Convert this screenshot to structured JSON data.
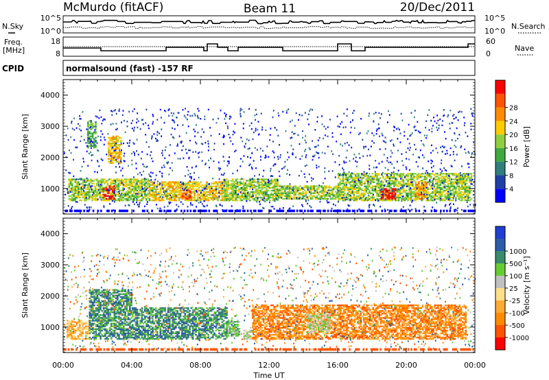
{
  "header": {
    "station": "McMurdo (fitACF)",
    "beam": "Beam 11",
    "date": "20/Dec/2011"
  },
  "noise_panel": {
    "left_label": "N.Sky",
    "right_label": "N.Search",
    "left_ticks": [
      "10^5",
      "10^0"
    ],
    "right_ticks": [
      "10^5",
      "10^0"
    ]
  },
  "freq_panel": {
    "left_label_1": "Freq.",
    "left_label_2": "[MHz]",
    "right_label": "Nave",
    "left_ticks": [
      "18",
      "8"
    ],
    "right_ticks": [
      "60",
      "0"
    ]
  },
  "cpid": {
    "label": "CPID",
    "mode": "normalsound (fast) -157 RF"
  },
  "colors": {
    "power": [
      "#0000ff",
      "#1f3fa6",
      "#2f7f7f",
      "#3fa93f",
      "#8fcf3f",
      "#ffcc00",
      "#ff8c00",
      "#ff5500",
      "#ff0000"
    ],
    "velocity": [
      "#ff0000",
      "#ff5500",
      "#ff8c00",
      "#ffaa33",
      "#ffe08a",
      "#c0c0c0",
      "#66cc33",
      "#3a8a6e",
      "#2c5ca8",
      "#1f3fd0"
    ]
  },
  "chart_data": [
    {
      "type": "heatmap",
      "name": "power",
      "ylabel": "Slant Range [km]",
      "y_ticks": [
        "1000",
        "2000",
        "3000",
        "4000"
      ],
      "ylim": [
        180,
        4500
      ],
      "colorbar_label": "Power [dB]",
      "colorbar_ticks": [
        "4",
        "8",
        "12",
        "16",
        "20",
        "24",
        "28"
      ],
      "colorbar_range": [
        0,
        32
      ],
      "bands": [
        {
          "t0": 0.3,
          "t1": 5.0,
          "r0": 600,
          "r1": 1300,
          "level": 4
        },
        {
          "t0": 2.3,
          "t1": 3.0,
          "r0": 650,
          "r1": 1100,
          "level": 8
        },
        {
          "t0": 2.6,
          "t1": 3.4,
          "r0": 1800,
          "r1": 2700,
          "level": 5
        },
        {
          "t0": 1.4,
          "t1": 1.9,
          "r0": 2300,
          "r1": 3200,
          "level": 3
        },
        {
          "t0": 5.0,
          "t1": 9.5,
          "r0": 600,
          "r1": 1200,
          "level": 5
        },
        {
          "t0": 6.9,
          "t1": 7.4,
          "r0": 650,
          "r1": 950,
          "level": 7
        },
        {
          "t0": 9.3,
          "t1": 12.5,
          "r0": 600,
          "r1": 1300,
          "level": 4
        },
        {
          "t0": 12.5,
          "t1": 16.0,
          "r0": 650,
          "r1": 1100,
          "level": 4
        },
        {
          "t0": 16.0,
          "t1": 23.8,
          "r0": 600,
          "r1": 1500,
          "level": 4
        },
        {
          "t0": 18.5,
          "t1": 19.4,
          "r0": 650,
          "r1": 1000,
          "level": 8
        },
        {
          "t0": 20.5,
          "t1": 21.2,
          "r0": 650,
          "r1": 1200,
          "level": 6
        }
      ]
    },
    {
      "type": "heatmap",
      "name": "velocity",
      "ylabel": "Slant Range [km]",
      "xlabel": "Time UT",
      "x_ticks": [
        "00:00",
        "04:00",
        "08:00",
        "12:00",
        "16:00",
        "20:00",
        "00:00"
      ],
      "xlim": [
        0,
        24
      ],
      "y_ticks": [
        "1000",
        "2000",
        "3000",
        "4000"
      ],
      "ylim": [
        180,
        4500
      ],
      "colorbar_label": "Velocity [m s⁻¹]",
      "colorbar_ticks": [
        "-1000",
        "-500",
        "-100",
        "-25",
        "25",
        "100",
        "500",
        "1000"
      ],
      "bands": [
        {
          "t0": 0.2,
          "t1": 1.5,
          "r0": 600,
          "r1": 1200,
          "level": 3
        },
        {
          "t0": 1.5,
          "t1": 4.0,
          "r0": 600,
          "r1": 2200,
          "level": 7
        },
        {
          "t0": 4.0,
          "t1": 9.5,
          "r0": 600,
          "r1": 1600,
          "level": 7
        },
        {
          "t0": 9.5,
          "t1": 10.3,
          "r0": 700,
          "r1": 1200,
          "level": 6
        },
        {
          "t0": 10.5,
          "t1": 11.0,
          "r0": 600,
          "r1": 900,
          "level": 5
        },
        {
          "t0": 11.0,
          "t1": 23.5,
          "r0": 600,
          "r1": 1700,
          "level": 2
        },
        {
          "t0": 14.2,
          "t1": 15.5,
          "r0": 800,
          "r1": 1400,
          "level": 5
        }
      ]
    }
  ]
}
